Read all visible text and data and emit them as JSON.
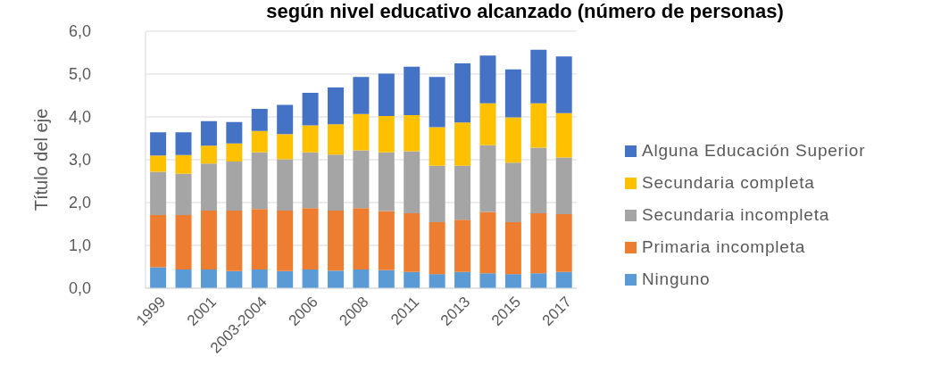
{
  "chart_data": {
    "type": "bar",
    "title": "según nivel educativo alcanzado (número de personas)",
    "ylabel": "Título del eje",
    "categories": [
      "1999",
      null,
      "2001",
      null,
      "2003-2004",
      null,
      "2006",
      null,
      "2008",
      null,
      "2011",
      null,
      "2013",
      null,
      "2015",
      null,
      "2017"
    ],
    "series": [
      {
        "name": "Ninguno",
        "color": "#5b9bd5",
        "values": [
          0.49,
          0.44,
          0.44,
          0.4,
          0.44,
          0.4,
          0.44,
          0.41,
          0.44,
          0.42,
          0.38,
          0.33,
          0.38,
          0.35,
          0.33,
          0.35,
          0.38
        ]
      },
      {
        "name": "Primaria incompleta",
        "color": "#ed7d31",
        "values": [
          1.22,
          1.27,
          1.37,
          1.41,
          1.41,
          1.41,
          1.43,
          1.4,
          1.43,
          1.38,
          1.37,
          1.21,
          1.22,
          1.43,
          1.21,
          1.4,
          1.35
        ]
      },
      {
        "name": "Secundaria incompleta",
        "color": "#a5a5a5",
        "values": [
          1.01,
          0.96,
          1.1,
          1.15,
          1.32,
          1.2,
          1.3,
          1.31,
          1.35,
          1.37,
          1.45,
          1.32,
          1.26,
          1.56,
          1.39,
          1.53,
          1.32
        ]
      },
      {
        "name": "Secundaria completa",
        "color": "#ffc000",
        "values": [
          0.38,
          0.44,
          0.42,
          0.42,
          0.5,
          0.59,
          0.63,
          0.71,
          0.85,
          0.85,
          0.84,
          0.9,
          1.01,
          0.98,
          1.06,
          1.04,
          1.04
        ]
      },
      {
        "name": "Alguna Educación Superior",
        "color": "#4472c4",
        "values": [
          0.54,
          0.53,
          0.57,
          0.5,
          0.52,
          0.68,
          0.76,
          0.86,
          0.86,
          0.99,
          1.13,
          1.17,
          1.38,
          1.11,
          1.12,
          1.25,
          1.32
        ]
      }
    ],
    "stacked": true,
    "ylim": [
      0,
      6
    ],
    "yticks": [
      {
        "value": 0,
        "label": "0,0"
      },
      {
        "value": 1,
        "label": "1,0"
      },
      {
        "value": 2,
        "label": "2,0"
      },
      {
        "value": 3,
        "label": "3,0"
      },
      {
        "value": 4,
        "label": "4,0"
      },
      {
        "value": 5,
        "label": "5,0"
      },
      {
        "value": 6,
        "label": "6,0"
      }
    ],
    "grid": "y",
    "legend": "right"
  }
}
